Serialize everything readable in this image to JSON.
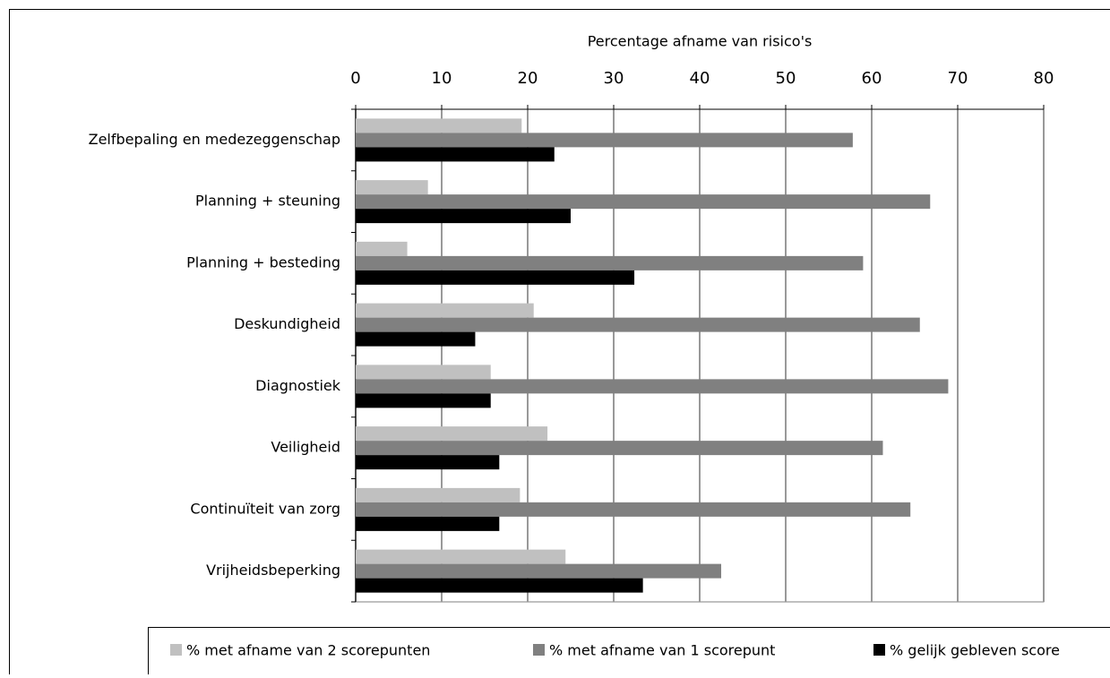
{
  "chart_data": {
    "type": "hbar",
    "x_label": "Percentage afname van risico's",
    "categories": [
      "Zelfbepaling en medezeggenschap",
      "Planning + steuning",
      "Planning + besteding",
      "Deskundigheid",
      "Diagnostiek",
      "Veiligheid",
      "Continuïteit van zorg",
      "Vrijheidsbeperking"
    ],
    "series": [
      {
        "name": "% met afname van 2 scorepunten",
        "color": "#c0c0c0",
        "values": [
          19.3,
          8.4,
          6.0,
          20.7,
          15.7,
          22.3,
          19.1,
          24.4
        ]
      },
      {
        "name": "% met afname van 1 scorepunt",
        "color": "#808080",
        "values": [
          57.8,
          66.8,
          59.0,
          65.6,
          68.9,
          61.3,
          64.5,
          42.5
        ]
      },
      {
        "name": "% gelijk gebleven score",
        "color": "#000000",
        "values": [
          23.1,
          25.0,
          32.4,
          13.9,
          15.7,
          16.7,
          16.7,
          33.4
        ]
      }
    ],
    "xlim": [
      0,
      80
    ],
    "xticks": [
      0,
      10,
      20,
      30,
      40,
      50,
      60,
      70,
      80
    ],
    "grid": true
  }
}
